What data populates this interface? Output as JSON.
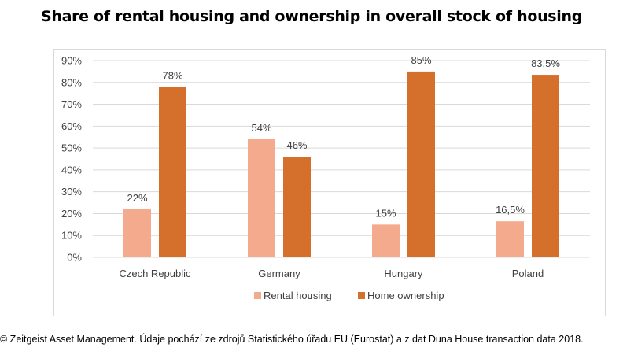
{
  "title": "Share of rental housing and ownership in overall stock of housing",
  "footer": "© Zeitgeist Asset Management. Údaje pochází ze zdrojů Statistického úřadu EU (Eurostat) a z dat Duna House transaction data 2018.",
  "chart_data": {
    "type": "bar",
    "title": "Share of rental housing and ownership in overall stock of housing",
    "xlabel": "",
    "ylabel": "",
    "ylim": [
      0,
      90
    ],
    "yticks": [
      "0%",
      "10%",
      "20%",
      "30%",
      "40%",
      "50%",
      "60%",
      "70%",
      "80%",
      "90%"
    ],
    "grid": true,
    "legend": "bottom",
    "categories": [
      "Czech Republic",
      "Germany",
      "Hungary",
      "Poland"
    ],
    "series": [
      {
        "name": "Rental housing",
        "color": "#f4aa8c",
        "values": [
          22,
          54,
          15,
          16.5
        ],
        "labels": [
          "22%",
          "54%",
          "15%",
          "16,5%"
        ]
      },
      {
        "name": "Home ownership",
        "color": "#d4702c",
        "values": [
          78,
          46,
          85,
          83.5
        ],
        "labels": [
          "78%",
          "46%",
          "85%",
          "83,5%"
        ]
      }
    ]
  }
}
